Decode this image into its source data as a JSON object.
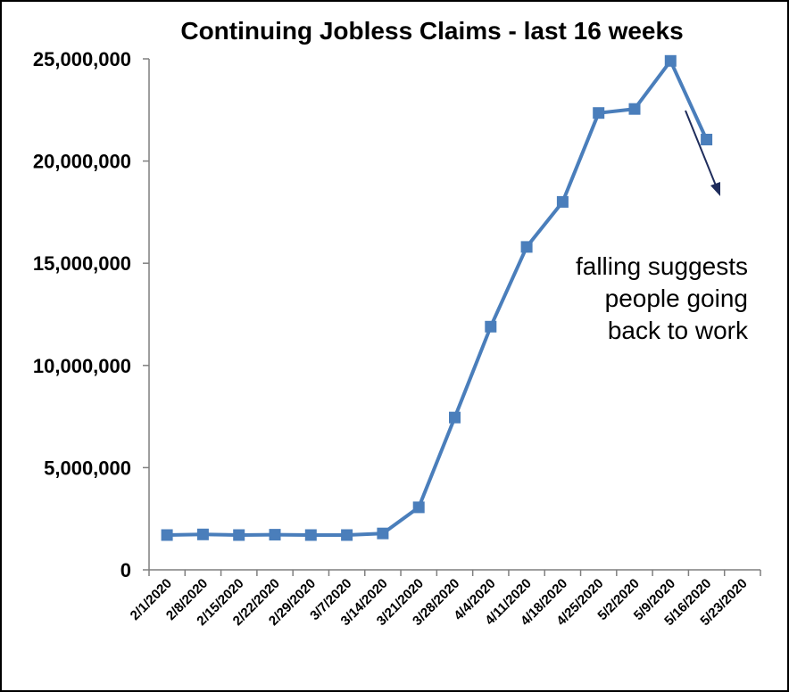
{
  "chart_data": {
    "type": "line",
    "title": "Continuing Jobless Claims - last 16 weeks",
    "xlabel": "",
    "ylabel": "",
    "categories": [
      "2/1/2020",
      "2/8/2020",
      "2/15/2020",
      "2/22/2020",
      "2/29/2020",
      "3/7/2020",
      "3/14/2020",
      "3/21/2020",
      "3/28/2020",
      "4/4/2020",
      "4/11/2020",
      "4/18/2020",
      "4/25/2020",
      "5/2/2020",
      "5/9/2020",
      "5/16/2020",
      "5/23/2020"
    ],
    "series": [
      {
        "values": [
          1700000,
          1730000,
          1700000,
          1720000,
          1700000,
          1700000,
          1780000,
          3060000,
          7450000,
          11900000,
          15800000,
          18000000,
          22350000,
          22550000,
          24900000,
          21050000,
          null
        ]
      }
    ],
    "ylim": [
      0,
      25000000
    ],
    "yticks": [
      0,
      5000000,
      10000000,
      15000000,
      20000000,
      25000000
    ],
    "ytick_labels": [
      "0",
      "5,000,000",
      "10,000,000",
      "15,000,000",
      "20,000,000",
      "25,000,000"
    ],
    "grid": false,
    "legend": "none",
    "annotation": {
      "lines": [
        "falling suggests",
        "people going",
        "back to work"
      ],
      "arrow": "down-right from 5/9/2020 peak"
    },
    "colors": {
      "line": "#4a7ebb",
      "marker": "#4a7ebb",
      "axis": "#7f7f7f",
      "arrow": "#1f2d5c"
    }
  }
}
